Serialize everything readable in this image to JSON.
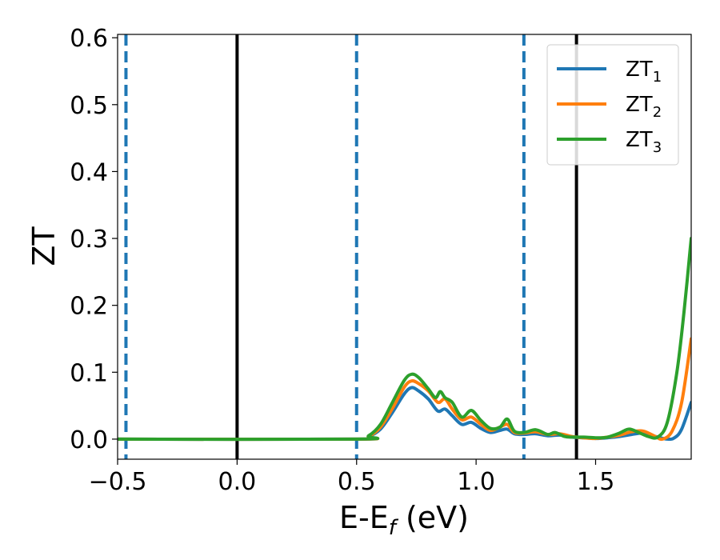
{
  "chart_data": {
    "type": "line",
    "xlabel": "E-E",
    "xlabel_sub": "f",
    "xlabel_unit": " (eV)",
    "ylabel": "ZT",
    "xlim": [
      -0.5,
      1.9
    ],
    "ylim": [
      -0.03,
      0.605
    ],
    "xticks": [
      -0.5,
      0.0,
      0.5,
      1.0,
      1.5
    ],
    "xtick_labels": [
      "−0.5",
      "0.0",
      "0.5",
      "1.0",
      "1.5"
    ],
    "yticks": [
      0.0,
      0.1,
      0.2,
      0.3,
      0.4,
      0.5,
      0.6
    ],
    "ytick_labels": [
      "0.0",
      "0.1",
      "0.2",
      "0.3",
      "0.4",
      "0.5",
      "0.6"
    ],
    "grid": false,
    "legend_position": "top-right",
    "vlines_solid": [
      0.0,
      1.42
    ],
    "vlines_dashed": [
      -0.465,
      0.5,
      1.2
    ],
    "vline_colors": {
      "solid": "#000000",
      "dashed": "#1f77b4"
    },
    "series": [
      {
        "name": "ZT",
        "name_sub": "1",
        "color": "#1f77b4",
        "x": [
          -0.5,
          0.5,
          0.55,
          0.6,
          0.65,
          0.7,
          0.73,
          0.76,
          0.8,
          0.84,
          0.87,
          0.9,
          0.94,
          0.98,
          1.02,
          1.06,
          1.1,
          1.13,
          1.16,
          1.2,
          1.25,
          1.3,
          1.35,
          1.4,
          1.45,
          1.5,
          1.55,
          1.6,
          1.65,
          1.7,
          1.75,
          1.8,
          1.83,
          1.86,
          1.9
        ],
        "y": [
          0.0,
          0.0,
          0.004,
          0.015,
          0.04,
          0.068,
          0.077,
          0.072,
          0.06,
          0.042,
          0.045,
          0.035,
          0.022,
          0.025,
          0.016,
          0.01,
          0.013,
          0.015,
          0.008,
          0.007,
          0.008,
          0.005,
          0.006,
          0.003,
          0.002,
          0.001,
          0.002,
          0.004,
          0.007,
          0.009,
          0.004,
          0.0,
          0.002,
          0.015,
          0.055
        ]
      },
      {
        "name": "ZT",
        "name_sub": "2",
        "color": "#ff7f0e",
        "x": [
          -0.5,
          0.5,
          0.55,
          0.6,
          0.65,
          0.7,
          0.73,
          0.76,
          0.8,
          0.84,
          0.87,
          0.9,
          0.94,
          0.98,
          1.02,
          1.06,
          1.1,
          1.13,
          1.16,
          1.2,
          1.25,
          1.3,
          1.35,
          1.4,
          1.45,
          1.5,
          1.55,
          1.6,
          1.65,
          1.7,
          1.75,
          1.78,
          1.82,
          1.86,
          1.9
        ],
        "y": [
          0.0,
          0.0,
          0.004,
          0.018,
          0.046,
          0.078,
          0.087,
          0.083,
          0.072,
          0.055,
          0.06,
          0.045,
          0.029,
          0.033,
          0.022,
          0.013,
          0.018,
          0.022,
          0.01,
          0.009,
          0.011,
          0.007,
          0.008,
          0.004,
          0.002,
          0.001,
          0.003,
          0.006,
          0.011,
          0.012,
          0.004,
          0.0,
          0.012,
          0.055,
          0.15
        ]
      },
      {
        "name": "ZT",
        "name_sub": "3",
        "color": "#2ca02c",
        "x": [
          -0.5,
          0.5,
          0.55,
          0.6,
          0.65,
          0.7,
          0.73,
          0.76,
          0.8,
          0.83,
          0.85,
          0.87,
          0.9,
          0.94,
          0.98,
          1.02,
          1.06,
          1.1,
          1.13,
          1.16,
          1.2,
          1.25,
          1.3,
          1.33,
          1.37,
          1.4,
          1.45,
          1.5,
          1.55,
          1.6,
          1.64,
          1.68,
          1.72,
          1.76,
          1.8,
          1.84,
          1.87,
          1.9
        ],
        "y": [
          0.0,
          0.0,
          0.005,
          0.022,
          0.055,
          0.088,
          0.097,
          0.092,
          0.075,
          0.062,
          0.071,
          0.062,
          0.055,
          0.033,
          0.043,
          0.028,
          0.016,
          0.018,
          0.03,
          0.012,
          0.01,
          0.014,
          0.007,
          0.01,
          0.004,
          0.003,
          0.003,
          0.002,
          0.003,
          0.009,
          0.015,
          0.01,
          0.004,
          0.003,
          0.025,
          0.1,
          0.19,
          0.3
        ]
      }
    ]
  }
}
